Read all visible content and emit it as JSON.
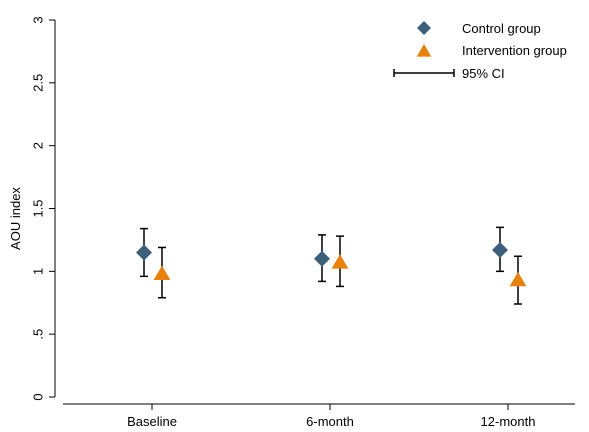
{
  "chart_data": {
    "type": "scatter",
    "title": "",
    "xlabel": "",
    "ylabel": "AOU index",
    "ylim": [
      0,
      3
    ],
    "yticks": [
      {
        "value": 0,
        "label": "0"
      },
      {
        "value": 0.5,
        "label": ".5"
      },
      {
        "value": 1,
        "label": "1"
      },
      {
        "value": 1.5,
        "label": "1.5"
      },
      {
        "value": 2,
        "label": "2"
      },
      {
        "value": 2.5,
        "label": "2.5"
      },
      {
        "value": 3,
        "label": "3"
      }
    ],
    "categories": [
      "Baseline",
      "6-month",
      "12-month"
    ],
    "grid": false,
    "legend_position": "top-right",
    "ci_label": "95% CI",
    "series": [
      {
        "name": "Control group",
        "marker": "diamond",
        "color": "#3d5f7a",
        "values": [
          1.15,
          1.1,
          1.17
        ],
        "ci_low": [
          0.96,
          0.92,
          1.0
        ],
        "ci_high": [
          1.34,
          1.29,
          1.35
        ]
      },
      {
        "name": "Intervention group",
        "marker": "triangle",
        "color": "#e8820c",
        "values": [
          0.99,
          1.08,
          0.94
        ],
        "ci_low": [
          0.79,
          0.88,
          0.74
        ],
        "ci_high": [
          1.19,
          1.28,
          1.12
        ]
      }
    ]
  }
}
